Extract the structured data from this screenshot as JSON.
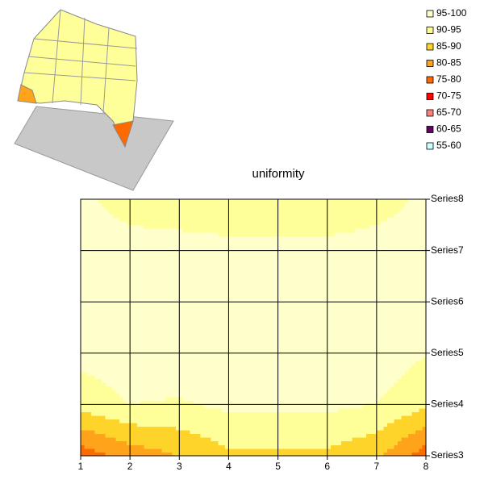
{
  "chart_data": {
    "type": "contour",
    "title": "uniformity",
    "categories": [
      "1",
      "2",
      "3",
      "4",
      "5",
      "6",
      "7",
      "8"
    ],
    "series": [
      {
        "name": "Series3",
        "values": [
          77,
          82,
          85,
          89,
          89,
          89,
          86,
          77
        ]
      },
      {
        "name": "Series4",
        "values": [
          92,
          95,
          94.5,
          96,
          96,
          96,
          95,
          91
        ]
      },
      {
        "name": "Series5",
        "values": [
          96.5,
          98,
          98,
          98,
          98,
          98,
          98,
          95.2
        ]
      },
      {
        "name": "Series6",
        "values": [
          98,
          98,
          98,
          98,
          98,
          98,
          98,
          98
        ]
      },
      {
        "name": "Series7",
        "values": [
          97,
          97,
          97,
          97,
          97,
          97,
          97,
          97
        ]
      },
      {
        "name": "Series8",
        "values": [
          96,
          93,
          92,
          90.5,
          90.5,
          90.5,
          93,
          96
        ]
      }
    ],
    "legend": [
      {
        "label": "95-100",
        "color": "#ffffcc"
      },
      {
        "label": "90-95",
        "color": "#ffff99"
      },
      {
        "label": "85-90",
        "color": "#ffd42a"
      },
      {
        "label": "80-85",
        "color": "#ffa31a"
      },
      {
        "label": "75-80",
        "color": "#ff6a00"
      },
      {
        "label": "70-75",
        "color": "#ff0000"
      },
      {
        "label": "65-70",
        "color": "#ff8080"
      },
      {
        "label": "60-65",
        "color": "#660066"
      },
      {
        "label": "55-60",
        "color": "#ccffff"
      }
    ]
  }
}
